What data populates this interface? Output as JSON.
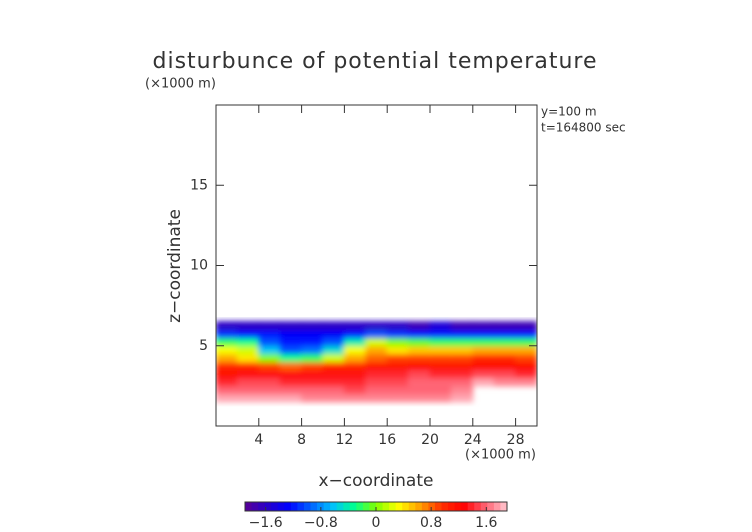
{
  "chart_data": {
    "type": "heatmap",
    "title": "disturbunce of potential temperature",
    "y_unit_label": "(×1000 m)",
    "x_unit_label": "(×1000 m)",
    "annotations": [
      "y=100 m",
      "t=164800 sec"
    ],
    "xlabel": "x−coordinate",
    "ylabel": "z−coordinate",
    "x": [
      0,
      2,
      4,
      6,
      8,
      10,
      12,
      14,
      16,
      18,
      20,
      22,
      24,
      26,
      28,
      30
    ],
    "y": [
      1.5,
      2.0,
      2.5,
      3.0,
      3.5,
      4.0,
      4.5,
      5.0,
      5.5,
      6.0,
      6.5
    ],
    "values": [
      [
        1.8,
        1.8,
        1.8,
        1.8,
        1.7,
        1.7,
        1.7,
        1.7,
        1.7,
        1.7,
        1.7,
        1.8,
        null,
        null,
        null
      ],
      [
        1.6,
        1.6,
        1.6,
        1.6,
        1.6,
        1.6,
        1.5,
        1.6,
        1.6,
        1.6,
        1.6,
        1.7,
        null,
        null,
        null
      ],
      [
        1.4,
        1.5,
        1.5,
        1.4,
        1.4,
        1.4,
        1.4,
        1.5,
        1.5,
        1.6,
        1.6,
        1.6,
        1.8,
        1.7,
        1.7
      ],
      [
        1.2,
        1.3,
        1.3,
        1.3,
        1.3,
        1.3,
        1.3,
        1.4,
        1.4,
        1.5,
        1.4,
        1.4,
        1.5,
        1.5,
        1.4
      ],
      [
        1.0,
        1.0,
        0.9,
        0.8,
        0.9,
        1.0,
        1.0,
        1.1,
        1.1,
        1.2,
        1.1,
        1.1,
        1.2,
        1.2,
        1.2
      ],
      [
        0.6,
        0.4,
        0.0,
        -0.3,
        -0.2,
        0.2,
        0.6,
        0.8,
        0.9,
        0.9,
        0.9,
        0.9,
        1.0,
        1.0,
        0.9
      ],
      [
        0.3,
        0.2,
        -0.6,
        -1.0,
        -0.9,
        -0.5,
        0.3,
        0.6,
        0.4,
        0.5,
        0.5,
        0.5,
        0.6,
        0.6,
        0.6
      ],
      [
        -0.2,
        -0.3,
        -1.0,
        -1.2,
        -1.2,
        -1.0,
        -0.4,
        0.2,
        0.0,
        -0.1,
        -0.2,
        -0.2,
        -0.2,
        -0.2,
        -0.2
      ],
      [
        -1.1,
        -1.2,
        -1.2,
        -1.3,
        -1.3,
        -1.3,
        -1.2,
        -1.0,
        -1.1,
        -1.2,
        -1.2,
        -1.2,
        -1.2,
        -1.2,
        -1.2
      ],
      [
        -1.6,
        -1.6,
        -1.6,
        -1.6,
        -1.6,
        -1.6,
        -1.6,
        -1.6,
        -1.6,
        -1.7,
        -1.5,
        -1.7,
        -1.7,
        -1.7,
        -1.7
      ]
    ],
    "xlim": [
      0,
      30
    ],
    "ylim": [
      0,
      20
    ],
    "xticks": [
      4,
      8,
      12,
      16,
      20,
      24,
      28
    ],
    "yticks": [
      5,
      10,
      15
    ],
    "clim": [
      -1.9,
      1.9
    ],
    "cticks": [
      {
        "value": -1.6,
        "label": "−1.6"
      },
      {
        "value": -0.8,
        "label": "−0.8"
      },
      0,
      0.8,
      1.6
    ],
    "colormap": [
      "#5a0096",
      "#2800c8",
      "#0000ff",
      "#0060ff",
      "#00c0ff",
      "#00ff90",
      "#80ff00",
      "#ffff00",
      "#ffa000",
      "#ff3000",
      "#ff0000",
      "#ff6070",
      "#ffc8d0"
    ]
  }
}
